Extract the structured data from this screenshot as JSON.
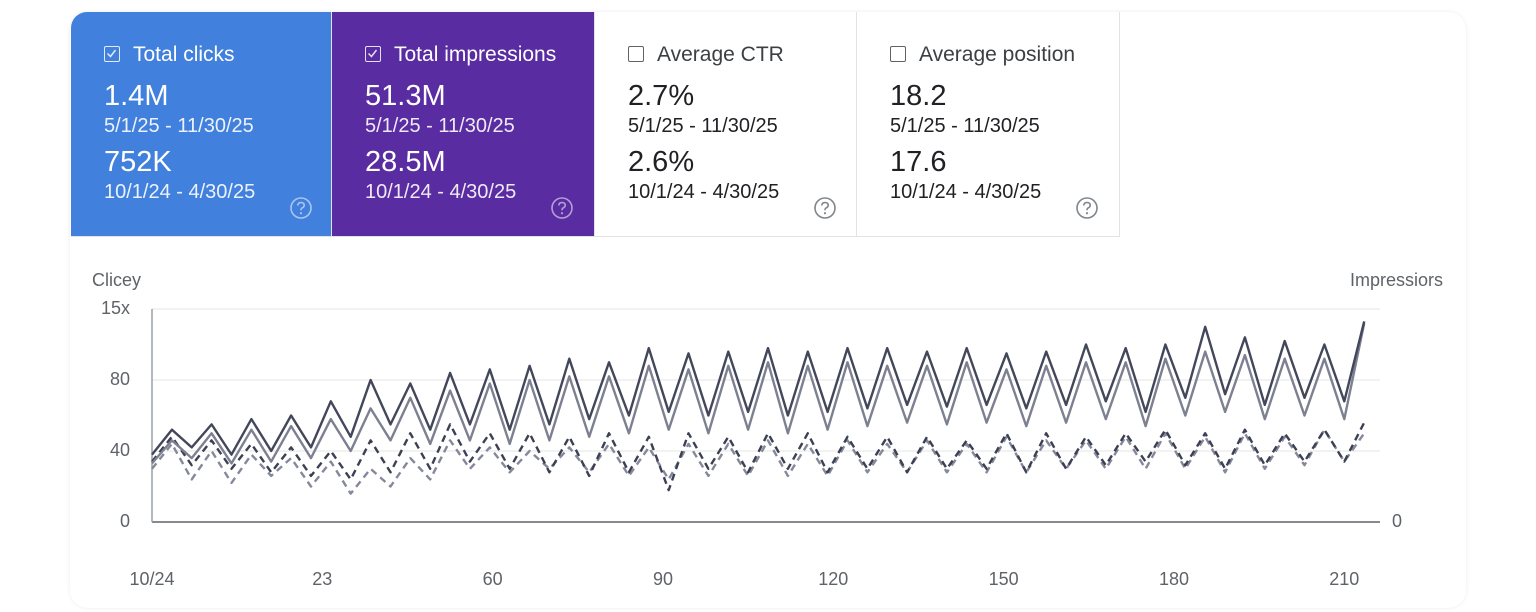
{
  "cards": [
    {
      "label": "Total clicks",
      "checked": true,
      "color": "#4180dc",
      "text_color": "#ffffff",
      "value": "1.4M",
      "range": "5/1/25 - 11/30/25",
      "compare_value": "752K",
      "compare_range": "10/1/24 - 4/30/25"
    },
    {
      "label": "Total impressions",
      "checked": true,
      "color": "#5a2ca1",
      "text_color": "#ffffff",
      "value": "51.3M",
      "range": "5/1/25 - 11/30/25",
      "compare_value": "28.5M",
      "compare_range": "10/1/24 - 4/30/25"
    },
    {
      "label": "Average CTR",
      "checked": false,
      "color": "#ffffff",
      "text_color": "#202124",
      "value": "2.7%",
      "range": "5/1/25 - 11/30/25",
      "compare_value": "2.6%",
      "compare_range": "10/1/24 - 4/30/25"
    },
    {
      "label": "Average position",
      "checked": false,
      "color": "#ffffff",
      "text_color": "#202124",
      "value": "18.2",
      "range": "5/1/25 - 11/30/25",
      "compare_value": "17.6",
      "compare_range": "10/1/24 - 4/30/25"
    }
  ],
  "chart_data": {
    "type": "line",
    "y_label": "Clicey",
    "y2_label": "Impressiors",
    "xlim": [
      0,
      214
    ],
    "xticks": [
      {
        "value": 0,
        "label": "10/24"
      },
      {
        "value": 30,
        "label": "23"
      },
      60,
      90,
      120,
      150,
      180,
      210
    ],
    "ylim": [
      0,
      120
    ],
    "yticks": [
      0,
      40,
      80,
      {
        "value": 120,
        "label": "15x"
      }
    ],
    "y2lim": [
      0,
      120
    ],
    "y2ticks": [
      0
    ],
    "grid": true,
    "x": [
      0,
      3.5,
      7,
      10.5,
      14,
      17.5,
      21,
      24.5,
      28,
      31.5,
      35,
      38.5,
      42,
      45.5,
      49,
      52.5,
      56,
      59.5,
      63,
      66.5,
      70,
      73.5,
      77,
      80.5,
      84,
      87.5,
      91,
      94.5,
      98,
      101.5,
      105,
      108.5,
      112,
      115.5,
      119,
      122.5,
      126,
      129.5,
      133,
      136.5,
      140,
      143.5,
      147,
      150.5,
      154,
      157.5,
      161,
      164.5,
      168,
      171.5,
      175,
      178.5,
      182,
      185.5,
      189,
      192.5,
      196,
      199.5,
      203,
      206.5,
      210,
      213.5
    ],
    "series": [
      {
        "color": "#43475a",
        "style": "solid",
        "values": [
          38,
          52,
          42,
          55,
          38,
          58,
          40,
          60,
          42,
          68,
          48,
          80,
          55,
          78,
          52,
          84,
          55,
          86,
          52,
          88,
          55,
          92,
          58,
          90,
          60,
          98,
          62,
          95,
          60,
          96,
          62,
          98,
          60,
          96,
          62,
          98,
          64,
          98,
          66,
          96,
          65,
          98,
          66,
          95,
          64,
          96,
          66,
          100,
          68,
          98,
          62,
          100,
          70,
          110,
          72,
          104,
          66,
          102,
          70,
          100,
          68,
          113
        ]
      },
      {
        "color": "#7d8090",
        "style": "solid",
        "values": [
          33,
          46,
          36,
          50,
          33,
          52,
          34,
          54,
          36,
          58,
          40,
          64,
          46,
          70,
          44,
          74,
          46,
          78,
          44,
          80,
          46,
          82,
          48,
          82,
          50,
          88,
          52,
          86,
          50,
          88,
          52,
          90,
          50,
          88,
          52,
          90,
          54,
          88,
          56,
          88,
          55,
          90,
          56,
          86,
          54,
          88,
          56,
          90,
          58,
          90,
          54,
          92,
          60,
          96,
          62,
          94,
          58,
          92,
          60,
          92,
          58,
          112
        ]
      },
      {
        "color": "#3c4052",
        "style": "dashed",
        "values": [
          34,
          48,
          32,
          46,
          30,
          44,
          28,
          42,
          26,
          40,
          24,
          46,
          28,
          50,
          30,
          55,
          34,
          50,
          30,
          50,
          28,
          48,
          26,
          50,
          28,
          48,
          18,
          50,
          30,
          48,
          28,
          50,
          30,
          50,
          28,
          48,
          30,
          48,
          28,
          48,
          30,
          46,
          30,
          50,
          28,
          50,
          30,
          48,
          32,
          50,
          34,
          52,
          32,
          50,
          30,
          52,
          32,
          50,
          34,
          52,
          34,
          56
        ]
      },
      {
        "color": "#85889a",
        "style": "dashed",
        "values": [
          30,
          44,
          24,
          40,
          22,
          38,
          26,
          36,
          20,
          34,
          16,
          30,
          20,
          36,
          24,
          46,
          30,
          42,
          28,
          40,
          30,
          42,
          28,
          44,
          26,
          42,
          24,
          44,
          26,
          44,
          26,
          46,
          26,
          44,
          26,
          46,
          28,
          44,
          28,
          46,
          28,
          44,
          28,
          48,
          28,
          46,
          30,
          46,
          30,
          48,
          30,
          50,
          30,
          48,
          28,
          50,
          30,
          48,
          32,
          52,
          34,
          50
        ]
      }
    ]
  }
}
